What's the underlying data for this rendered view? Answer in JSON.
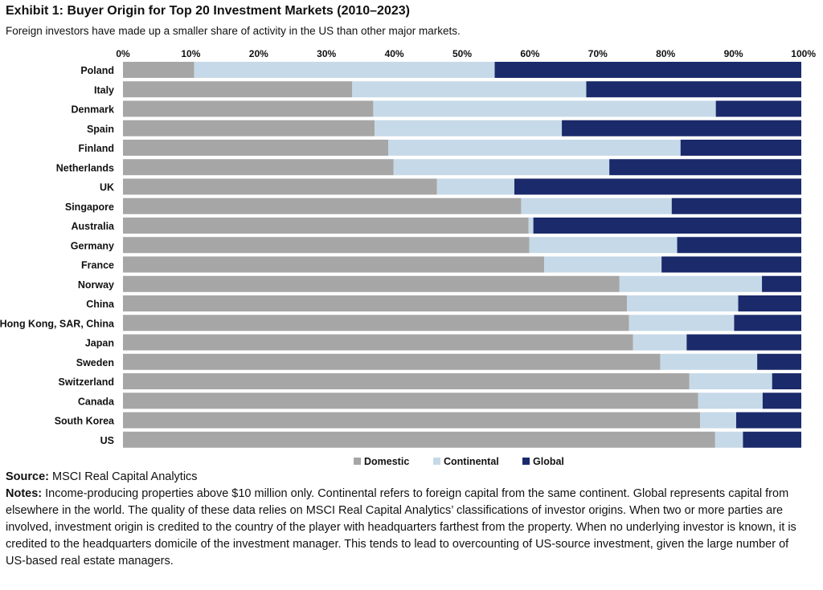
{
  "header": {
    "title": "Exhibit 1: Buyer Origin for Top 20 Investment Markets (2010–2023)",
    "subtitle": "Foreign investors have made up a smaller share of activity in the US than other major markets."
  },
  "chart_data": {
    "type": "bar",
    "orientation": "horizontal",
    "stacked": true,
    "categories": [
      "Poland",
      "Italy",
      "Denmark",
      "Spain",
      "Finland",
      "Netherlands",
      "UK",
      "Singapore",
      "Australia",
      "Germany",
      "France",
      "Norway",
      "China",
      "Hong Kong, SAR, China",
      "Japan",
      "Sweden",
      "Switzerland",
      "Canada",
      "South Korea",
      "US"
    ],
    "series": [
      {
        "name": "Domestic",
        "color": "#a6a6a6",
        "values": [
          10.5,
          33.8,
          36.9,
          37.1,
          39.1,
          39.9,
          46.3,
          58.7,
          59.8,
          59.9,
          62.1,
          73.2,
          74.3,
          74.6,
          75.2,
          79.2,
          83.5,
          84.8,
          85.1,
          87.3
        ]
      },
      {
        "name": "Continental",
        "color": "#c6d9e8",
        "values": [
          44.3,
          34.5,
          50.5,
          27.6,
          43.1,
          31.8,
          11.4,
          22.2,
          0.7,
          21.8,
          17.3,
          21.0,
          16.4,
          15.5,
          7.9,
          14.3,
          12.2,
          9.5,
          5.3,
          4.1
        ]
      },
      {
        "name": "Global",
        "color": "#1b2a6b",
        "values": [
          45.2,
          31.7,
          12.6,
          35.3,
          17.8,
          28.3,
          42.3,
          19.1,
          39.5,
          18.3,
          20.6,
          5.8,
          9.3,
          9.9,
          16.9,
          6.5,
          4.3,
          5.7,
          9.6,
          8.6
        ]
      }
    ],
    "x_ticks": [
      "0%",
      "10%",
      "20%",
      "30%",
      "40%",
      "50%",
      "60%",
      "70%",
      "80%",
      "90%",
      "100%"
    ],
    "xlim": [
      0,
      100
    ],
    "grid": false,
    "legend": {
      "placement": "bottom",
      "entries": [
        "Domestic",
        "Continental",
        "Global"
      ]
    }
  },
  "footer": {
    "source_label": "Source:",
    "source_text": " MSCI Real Capital Analytics",
    "notes_label": "Notes:",
    "notes_text": " Income-producing properties above $10 million only. Continental refers to foreign capital from the same continent. Global represents capital from elsewhere in the world. The quality of these data relies on MSCI Real Capital Analytics’ classifications of investor origins. When two or more parties are involved, investment origin is credited to the country of the player with headquarters farthest from the property. When no underlying investor is known, it is credited to the headquarters domicile of the investment manager. This tends to lead to overcounting of US-source investment, given the large number of US-based real estate managers."
  }
}
